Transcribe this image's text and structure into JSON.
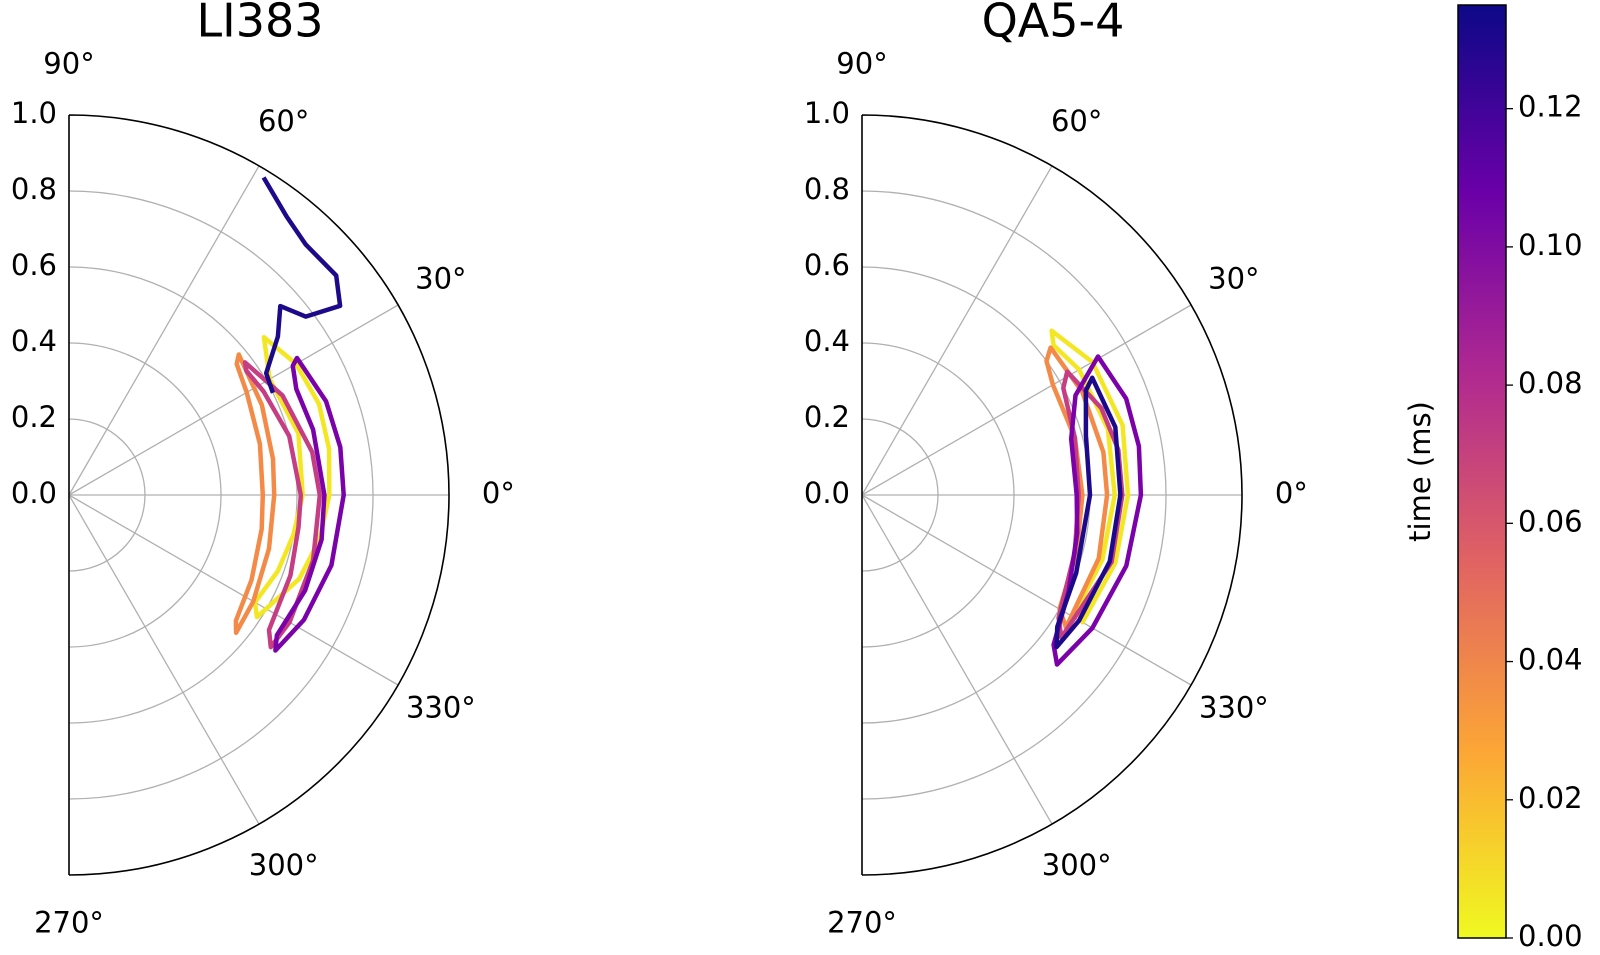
{
  "chart_data": [
    {
      "type": "polar",
      "title": "LI383",
      "thetalim": [
        -90,
        90
      ],
      "rlim": [
        0,
        1
      ],
      "grid": true,
      "rticks": [
        {
          "value": 0,
          "label": "0.0"
        },
        {
          "value": 0.2,
          "label": "0.2"
        },
        {
          "value": 0.4,
          "label": "0.4"
        },
        {
          "value": 0.6,
          "label": "0.6"
        },
        {
          "value": 0.8,
          "label": "0.8"
        },
        {
          "value": 1,
          "label": "1.0"
        }
      ],
      "thetaticks": [
        {
          "value": -90,
          "label": "270°"
        },
        {
          "value": -60,
          "label": "300°"
        },
        {
          "value": -30,
          "label": "330°"
        },
        {
          "value": 0,
          "label": "0°"
        },
        {
          "value": 30,
          "label": "30°"
        },
        {
          "value": 60,
          "label": "60°"
        },
        {
          "value": 90,
          "label": "90°"
        }
      ],
      "series": [
        {
          "color": "#f3e724",
          "closed": true,
          "theta": [
            39,
            30,
            20,
            10,
            0,
            -10,
            -20,
            -33,
            -30,
            -20,
            -10,
            0,
            15,
            30
          ],
          "r": [
            0.66,
            0.69,
            0.7,
            0.695,
            0.685,
            0.67,
            0.645,
            0.59,
            0.565,
            0.585,
            0.6,
            0.615,
            0.625,
            0.61
          ]
        },
        {
          "color": "#f48a47",
          "closed": true,
          "theta": [
            39.6,
            25,
            10,
            0,
            -15,
            -30,
            -39.5,
            -37,
            -25,
            -10,
            0,
            15,
            30,
            38
          ],
          "r": [
            0.58,
            0.56,
            0.545,
            0.54,
            0.545,
            0.56,
            0.57,
            0.55,
            0.53,
            0.515,
            0.51,
            0.52,
            0.54,
            0.56
          ]
        },
        {
          "color": "#c53d83",
          "closed": true,
          "theta": [
            37,
            25,
            10,
            0,
            -15,
            -30,
            -37,
            -34,
            -20,
            -8,
            0,
            15,
            28,
            35
          ],
          "r": [
            0.58,
            0.62,
            0.65,
            0.66,
            0.665,
            0.67,
            0.665,
            0.635,
            0.62,
            0.61,
            0.61,
            0.6,
            0.58,
            0.57
          ]
        },
        {
          "color": "#7a02a8",
          "closed": true,
          "theta": [
            31,
            20,
            10,
            0,
            -15,
            -28,
            -37,
            -34,
            -22,
            -10,
            0,
            15,
            25,
            30
          ],
          "r": [
            0.7,
            0.72,
            0.725,
            0.723,
            0.715,
            0.7,
            0.68,
            0.66,
            0.67,
            0.675,
            0.672,
            0.665,
            0.66,
            0.68
          ]
        },
        {
          "color": "#1c0a8a",
          "closed": false,
          "theta": [
            58.5,
            52,
            46.6,
            39.4,
            34.9,
            37,
            41.8,
            37.2,
            31.7,
            26.6
          ],
          "r": [
            0.98,
            0.93,
            0.907,
            0.91,
            0.87,
            0.78,
            0.746,
            0.69,
            0.61,
            0.6
          ]
        }
      ]
    },
    {
      "type": "polar",
      "title": "QA5-4",
      "thetalim": [
        -90,
        90
      ],
      "rlim": [
        0,
        1
      ],
      "grid": true,
      "rticks": [
        {
          "value": 0,
          "label": "0.0"
        },
        {
          "value": 0.2,
          "label": "0.2"
        },
        {
          "value": 0.4,
          "label": "0.4"
        },
        {
          "value": 0.6,
          "label": "0.6"
        },
        {
          "value": 0.8,
          "label": "0.8"
        },
        {
          "value": 1,
          "label": "1.0"
        }
      ],
      "thetaticks": [
        {
          "value": -90,
          "label": "270°"
        },
        {
          "value": -60,
          "label": "300°"
        },
        {
          "value": -30,
          "label": "330°"
        },
        {
          "value": 0,
          "label": "0°"
        },
        {
          "value": 30,
          "label": "30°"
        },
        {
          "value": 60,
          "label": "60°"
        },
        {
          "value": 90,
          "label": "90°"
        }
      ],
      "series": [
        {
          "color": "#f3e724",
          "closed": true,
          "theta": [
            40.9,
            30,
            15,
            0,
            -15,
            -30,
            -28,
            -15,
            0,
            15,
            30,
            38
          ],
          "r": [
            0.66,
            0.7,
            0.71,
            0.7,
            0.69,
            0.67,
            0.64,
            0.655,
            0.665,
            0.67,
            0.66,
            0.64
          ]
        },
        {
          "color": "#f48a47",
          "closed": true,
          "theta": [
            38,
            25,
            10,
            0,
            -15,
            -33,
            -30,
            -15,
            0,
            15,
            30,
            36
          ],
          "r": [
            0.63,
            0.64,
            0.645,
            0.645,
            0.645,
            0.64,
            0.6,
            0.585,
            0.58,
            0.58,
            0.58,
            0.6
          ]
        },
        {
          "color": "#c53d83",
          "closed": true,
          "theta": [
            31,
            20,
            10,
            0,
            -15,
            -35.6,
            -32,
            -15,
            0,
            15,
            28
          ],
          "r": [
            0.63,
            0.67,
            0.685,
            0.685,
            0.68,
            0.645,
            0.61,
            0.58,
            0.57,
            0.58,
            0.6
          ]
        },
        {
          "color": "#7a02a8",
          "closed": true,
          "theta": [
            30.4,
            20,
            10,
            0,
            -15,
            -30,
            -41,
            -38,
            -25,
            -10,
            0,
            15,
            25
          ],
          "r": [
            0.72,
            0.74,
            0.74,
            0.734,
            0.72,
            0.7,
            0.68,
            0.64,
            0.6,
            0.575,
            0.565,
            0.57,
            0.62
          ]
        },
        {
          "color": "#1c0a8a",
          "closed": true,
          "theta": [
            27,
            15,
            0,
            -15,
            -30,
            -38,
            -34,
            -20,
            0,
            15,
            25
          ],
          "r": [
            0.68,
            0.69,
            0.68,
            0.675,
            0.66,
            0.65,
            0.62,
            0.6,
            0.6,
            0.61,
            0.65
          ]
        }
      ]
    },
    {
      "type": "colorbar",
      "label": "time (ms)",
      "ylim": [
        0,
        0.135
      ],
      "yticks": [
        {
          "value": 0,
          "label": "0.00"
        },
        {
          "value": 0.02,
          "label": "0.02"
        },
        {
          "value": 0.04,
          "label": "0.04"
        },
        {
          "value": 0.06,
          "label": "0.06"
        },
        {
          "value": 0.08,
          "label": "0.08"
        },
        {
          "value": 0.1,
          "label": "0.10"
        },
        {
          "value": 0.12,
          "label": "0.12"
        }
      ],
      "colormap": [
        "#f0f921",
        "#fca636",
        "#e16462",
        "#b12a90",
        "#6a00a8",
        "#0d0887"
      ]
    }
  ]
}
